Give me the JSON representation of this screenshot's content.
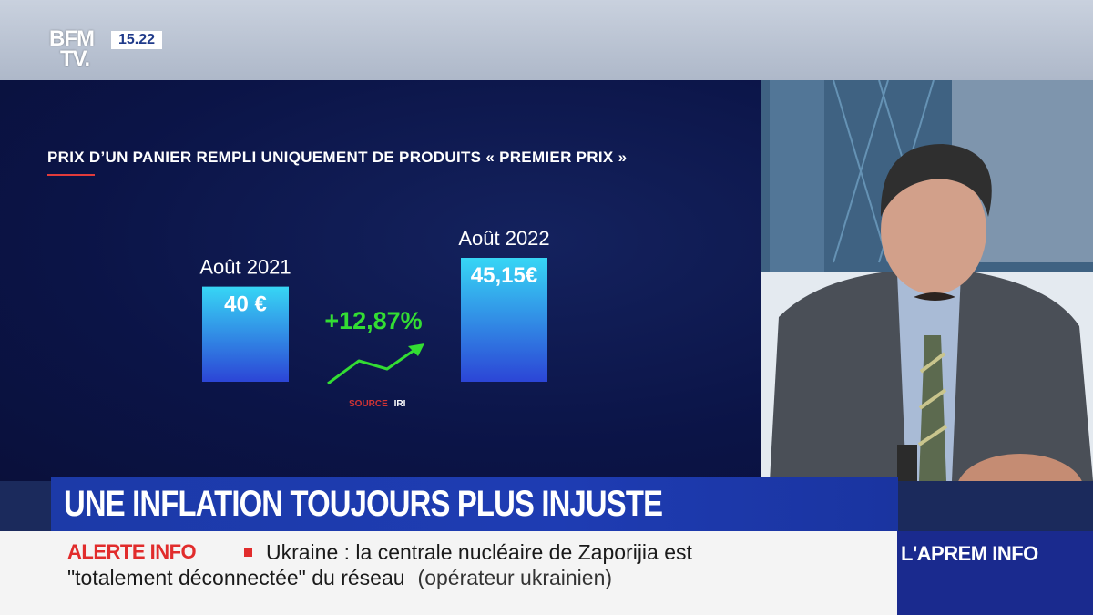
{
  "channel": {
    "logo_line1": "BFM",
    "logo_line2": "TV.",
    "time": "15.22"
  },
  "chart_data": {
    "type": "bar",
    "title": "PRIX D’UN PANIER REMPLI UNIQUEMENT DE PRODUITS « PREMIER PRIX »",
    "categories": [
      "Août 2021",
      "Août 2022"
    ],
    "values": [
      40,
      45.15
    ],
    "value_labels": [
      "40 €",
      "45,15€"
    ],
    "change_label": "+12,87%",
    "source_label": "SOURCE",
    "source_value": "IRI",
    "colors": {
      "bar_top": "#37d6f5",
      "bar_bottom": "#2c45d6",
      "accent": "#33dd33",
      "title_underline": "#e23b3b"
    }
  },
  "headline": "UNE INFLATION TOUJOURS PLUS INJUSTE",
  "ticker": {
    "label": "ALERTE INFO",
    "line1": "Ukraine : la centrale nucléaire de Zaporijia est",
    "line2": "\"totalement déconnectée\" du réseau",
    "source": "(opérateur ukrainien)"
  },
  "program": "L'APREM INFO"
}
